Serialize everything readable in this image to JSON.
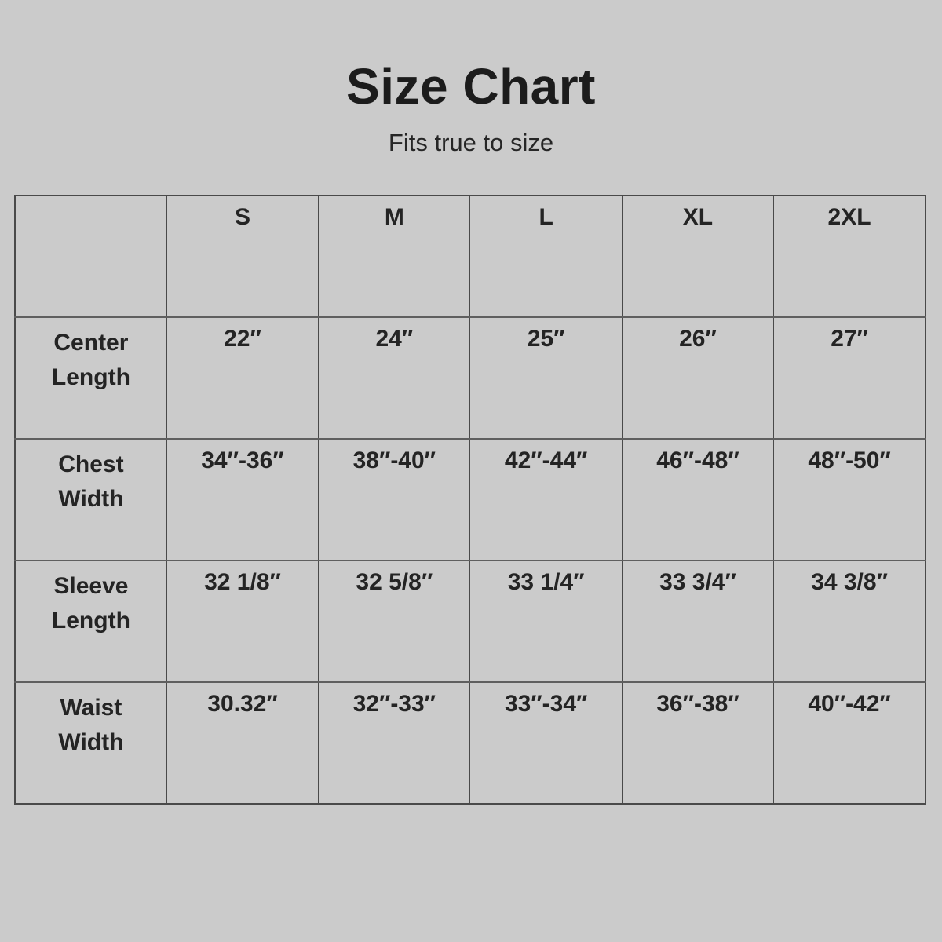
{
  "colors": {
    "background": "#cbcbcb",
    "text": "#1f1f1f",
    "border": "#4a4a4a"
  },
  "header": {
    "title": "Size Chart",
    "subtitle": "Fits true to size"
  },
  "size_table": {
    "column_headers": [
      "",
      "S",
      "M",
      "L",
      "XL",
      "2XL"
    ],
    "rows": [
      {
        "label": "Center\nLength",
        "values": [
          "22″",
          "24″",
          "25″",
          "26″",
          "27″"
        ]
      },
      {
        "label": "Chest\nWidth",
        "values": [
          "34″-36″",
          "38″-40″",
          "42″-44″",
          "46″-48″",
          "48″-50″"
        ]
      },
      {
        "label": "Sleeve\nLength",
        "values": [
          "32 1/8″",
          "32 5/8″",
          "33 1/4″",
          "33 3/4″",
          "34 3/8″"
        ]
      },
      {
        "label": "Waist\nWidth",
        "values": [
          "30.32″",
          "32″-33″",
          "33″-34″",
          "36″-38″",
          "40″-42″"
        ]
      }
    ]
  }
}
